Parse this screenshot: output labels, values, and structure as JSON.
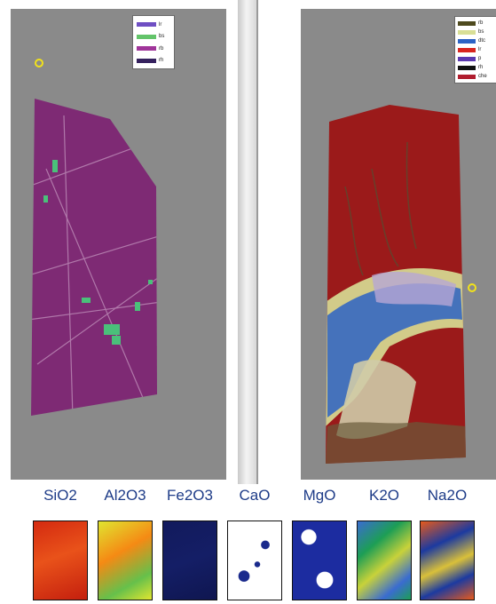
{
  "left_panel": {
    "legend": [
      {
        "label": "lr",
        "color": "#6f4fc3"
      },
      {
        "label": "bs",
        "color": "#63c46a"
      },
      {
        "label": "rb",
        "color": "#a0359a"
      },
      {
        "label": "rh",
        "color": "#35215e"
      }
    ],
    "rock_color": "#7e2a74",
    "mineral_color": "#4ac07a"
  },
  "right_panel": {
    "legend": [
      {
        "label": "rb",
        "color": "#4e4a1e"
      },
      {
        "label": "bs",
        "color": "#d8df96"
      },
      {
        "label": "dtc",
        "color": "#2d63c4"
      },
      {
        "label": "lr",
        "color": "#d8251f"
      },
      {
        "label": "p",
        "color": "#5a38b0"
      },
      {
        "label": "rh",
        "color": "#111111"
      },
      {
        "label": "che",
        "color": "#b01d2e"
      }
    ],
    "rock_color": "#9b1a1a"
  },
  "oxides": [
    {
      "label": "SiO2",
      "colors": [
        "#d42a10",
        "#e9521a",
        "#c41f0e"
      ]
    },
    {
      "label": "Al2O3",
      "colors": [
        "#e0e530",
        "#f58a14",
        "#66c04b"
      ]
    },
    {
      "label": "Fe2O3",
      "colors": [
        "#121a5c",
        "#141e66",
        "#0f1650"
      ]
    },
    {
      "label": "CaO",
      "colors": [
        "#ffffff",
        "#1a2a8c",
        "#ffffff"
      ]
    },
    {
      "label": "MgO",
      "colors": [
        "#1c2ca0",
        "#ffffff",
        "#15237e"
      ]
    },
    {
      "label": "K2O",
      "colors": [
        "#3a6cd0",
        "#c8d23a",
        "#1d9e55"
      ]
    },
    {
      "label": "Na2O",
      "colors": [
        "#1c3aa0",
        "#e65a1c",
        "#d9c03a"
      ]
    }
  ]
}
